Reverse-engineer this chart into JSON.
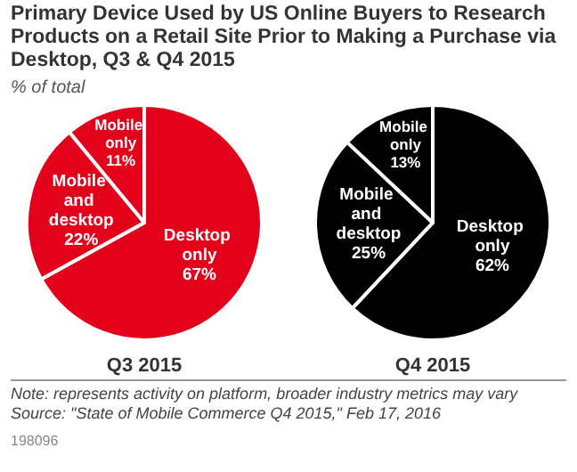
{
  "chart_data": [
    {
      "type": "pie",
      "title": "Primary Device Used by US Online Buyers to Research Products on a Retail Site Prior to Making a Purchase via Desktop, Q3 & Q4 2015",
      "subtitle": "% of total",
      "xlabel": "Q3 2015",
      "categories": [
        "Desktop only",
        "Mobile and desktop",
        "Mobile only"
      ],
      "values": [
        67,
        22,
        11
      ],
      "value_labels": [
        "67%",
        "22%",
        "11%"
      ],
      "colors": [
        "#e2001a",
        "#e2001a",
        "#e2001a"
      ]
    },
    {
      "type": "pie",
      "xlabel": "Q4 2015",
      "categories": [
        "Desktop only",
        "Mobile and desktop",
        "Mobile only"
      ],
      "values": [
        62,
        25,
        13
      ],
      "value_labels": [
        "62%",
        "25%",
        "13%"
      ],
      "colors": [
        "#000000",
        "#000000",
        "#000000"
      ],
      "annotations": [
        "Note: represents activity on platform, broader industry metrics may vary",
        "Source: \"State of Mobile Commerce Q4 2015,\" Feb 17, 2016",
        "198096"
      ]
    }
  ]
}
